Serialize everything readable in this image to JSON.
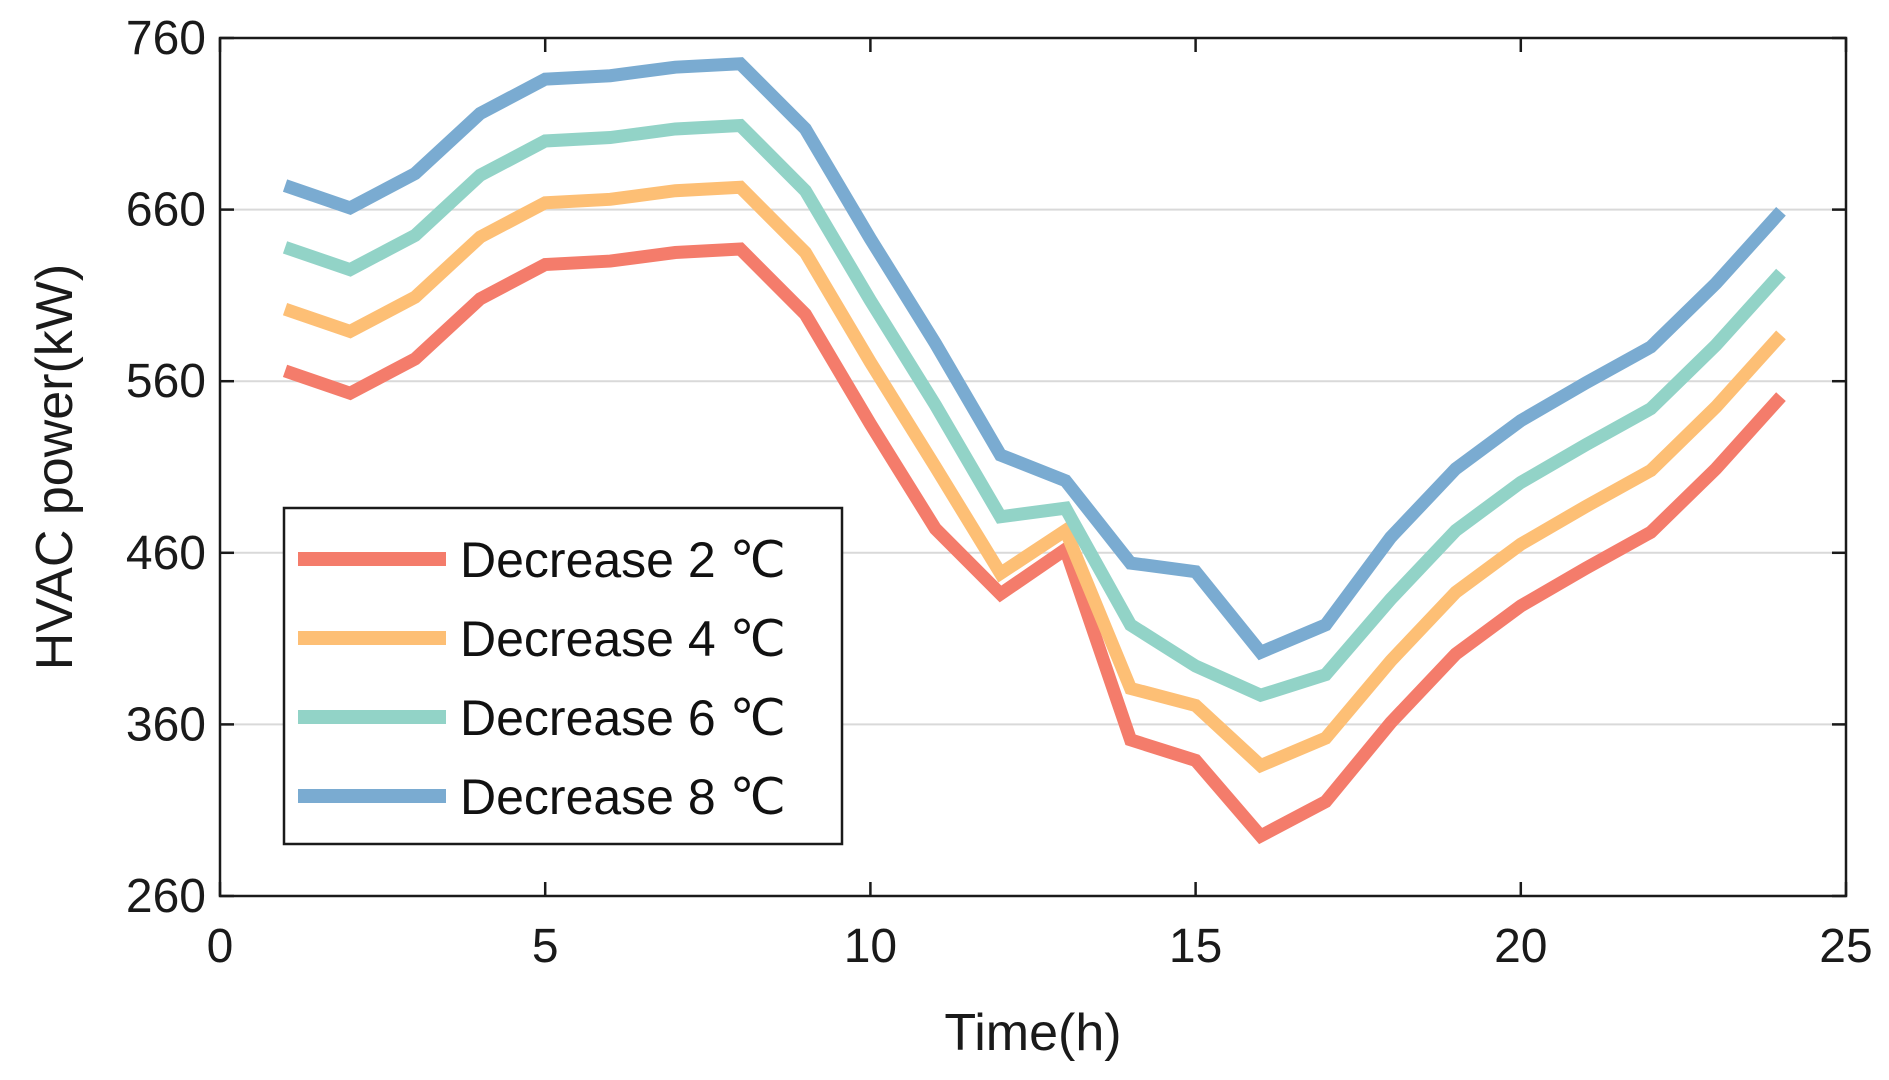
{
  "chart_data": {
    "type": "line",
    "xlabel": "Time(h)",
    "ylabel": "HVAC power(kW)",
    "xlim": [
      0,
      25
    ],
    "ylim": [
      260,
      760
    ],
    "xticks": [
      "0",
      "5",
      "10",
      "15",
      "20",
      "25"
    ],
    "yticks": [
      "260",
      "360",
      "460",
      "560",
      "660",
      "760"
    ],
    "grid": "horizontal",
    "legend_position": "lower-left",
    "x": [
      1,
      2,
      3,
      4,
      5,
      6,
      7,
      8,
      9,
      10,
      11,
      12,
      13,
      14,
      15,
      16,
      17,
      18,
      19,
      20,
      21,
      22,
      23,
      24
    ],
    "series": [
      {
        "name": "Decrease 2 ℃",
        "color": "#f47c6b",
        "values": [
          566,
          553,
          573,
          608,
          628,
          630,
          635,
          637,
          599,
          535,
          474,
          436,
          462,
          351,
          339,
          295,
          315,
          361,
          401,
          429,
          451,
          472,
          509,
          551
        ]
      },
      {
        "name": "Decrease 4 ℃",
        "color": "#fdbf75",
        "values": [
          602,
          589,
          609,
          644,
          664,
          666,
          671,
          673,
          635,
          571,
          510,
          448,
          473,
          381,
          371,
          336,
          352,
          397,
          437,
          465,
          487,
          508,
          545,
          587
        ]
      },
      {
        "name": "Decrease 6 ℃",
        "color": "#92d3c7",
        "values": [
          638,
          625,
          645,
          680,
          700,
          702,
          707,
          709,
          671,
          607,
          546,
          481,
          486,
          418,
          394,
          377,
          389,
          433,
          473,
          501,
          523,
          544,
          581,
          623
        ]
      },
      {
        "name": "Decrease 8 ℃",
        "color": "#7aabd1",
        "values": [
          674,
          661,
          681,
          716,
          736,
          738,
          743,
          745,
          707,
          643,
          582,
          517,
          502,
          454,
          449,
          402,
          418,
          469,
          509,
          537,
          559,
          580,
          617,
          659
        ]
      }
    ]
  }
}
